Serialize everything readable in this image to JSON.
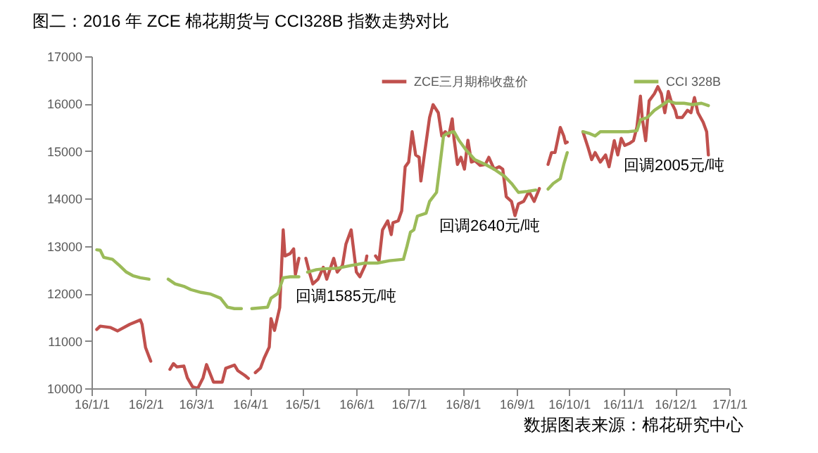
{
  "chart_data": {
    "type": "line",
    "title": "图二：2016 年 ZCE 棉花期货与 CCI328B 指数走势对比",
    "series": [
      {
        "name": "ZCE三月期棉收盘价",
        "color": "#c0504d",
        "x": [
          "2016-01-04",
          "2016-01-06",
          "2016-01-12",
          "2016-01-16",
          "2016-01-23",
          "2016-01-29",
          "2016-01-30",
          "2016-02-01",
          "2016-02-04",
          "2016-02-10",
          "2016-02-15",
          "2016-02-17",
          "2016-02-19",
          "2016-02-23",
          "2016-02-25",
          "2016-02-28",
          "2016-03-02",
          "2016-03-05",
          "2016-03-07",
          "2016-03-11",
          "2016-03-16",
          "2016-03-18",
          "2016-03-23",
          "2016-03-25",
          "2016-03-29",
          "2016-03-31",
          "2016-04-02",
          "2016-04-04",
          "2016-04-07",
          "2016-04-09",
          "2016-04-12",
          "2016-04-13",
          "2016-04-15",
          "2016-04-18",
          "2016-04-20",
          "2016-04-21",
          "2016-04-24",
          "2016-04-26",
          "2016-04-27",
          "2016-04-29",
          "2016-05-01",
          "2016-05-03",
          "2016-05-05",
          "2016-05-07",
          "2016-05-10",
          "2016-05-13",
          "2016-05-15",
          "2016-05-19",
          "2016-05-21",
          "2016-05-24",
          "2016-05-26",
          "2016-05-29",
          "2016-05-30",
          "2016-06-01",
          "2016-06-03",
          "2016-06-06",
          "2016-06-07",
          "2016-06-10",
          "2016-06-12",
          "2016-06-14",
          "2016-06-16",
          "2016-06-19",
          "2016-06-21",
          "2016-06-22",
          "2016-06-25",
          "2016-06-27",
          "2016-06-29",
          "2016-07-01",
          "2016-07-03",
          "2016-07-05",
          "2016-07-07",
          "2016-07-08",
          "2016-07-10",
          "2016-07-13",
          "2016-07-15",
          "2016-07-18",
          "2016-07-20",
          "2016-07-22",
          "2016-07-24",
          "2016-07-26",
          "2016-07-27",
          "2016-07-29",
          "2016-07-31",
          "2016-08-02",
          "2016-08-04",
          "2016-08-06",
          "2016-08-08",
          "2016-08-11",
          "2016-08-14",
          "2016-08-16",
          "2016-08-19",
          "2016-08-22",
          "2016-08-24",
          "2016-08-26",
          "2016-08-29",
          "2016-08-31",
          "2016-09-02",
          "2016-09-05",
          "2016-09-08",
          "2016-09-11",
          "2016-09-14",
          "2016-09-16",
          "2016-09-19",
          "2016-09-21",
          "2016-09-23",
          "2016-09-26",
          "2016-09-28",
          "2016-09-29",
          "2016-09-30",
          "2016-10-05",
          "2016-10-09",
          "2016-10-12",
          "2016-10-14",
          "2016-10-16",
          "2016-10-19",
          "2016-10-22",
          "2016-10-24",
          "2016-10-27",
          "2016-10-29",
          "2016-10-31",
          "2016-11-02",
          "2016-11-05",
          "2016-11-07",
          "2016-11-09",
          "2016-11-11",
          "2016-11-12",
          "2016-11-14",
          "2016-11-16",
          "2016-11-19",
          "2016-11-21",
          "2016-11-23",
          "2016-11-25",
          "2016-11-27",
          "2016-11-29",
          "2016-12-01",
          "2016-12-02",
          "2016-12-05",
          "2016-12-08",
          "2016-12-10",
          "2016-12-12",
          "2016-12-14",
          "2016-12-17",
          "2016-12-19",
          "2016-12-20"
        ],
        "values": [
          11240,
          11310,
          11280,
          11210,
          11350,
          11440,
          11350,
          10860,
          10570,
          null,
          10400,
          10520,
          10450,
          10470,
          10220,
          10030,
          10000,
          10220,
          10500,
          10130,
          10130,
          10420,
          10490,
          10370,
          10270,
          10210,
          null,
          10330,
          10430,
          10630,
          10870,
          11470,
          11220,
          11700,
          13340,
          12790,
          12840,
          12940,
          12400,
          12740,
          null,
          12740,
          12450,
          12200,
          12300,
          12550,
          12300,
          12740,
          12450,
          12590,
          13040,
          13340,
          13040,
          12450,
          12350,
          12590,
          12790,
          null,
          12790,
          12690,
          13340,
          13530,
          13240,
          13490,
          13530,
          13740,
          14670,
          14770,
          15410,
          14920,
          14870,
          14370,
          14920,
          15710,
          15980,
          15810,
          15320,
          15410,
          15320,
          15680,
          15270,
          14720,
          14870,
          14620,
          15230,
          14770,
          14800,
          14700,
          14720,
          14870,
          14620,
          14670,
          14620,
          14040,
          13940,
          13640,
          13890,
          13940,
          14150,
          13940,
          14210,
          null,
          14720,
          14970,
          14970,
          15500,
          15320,
          15170,
          15190,
          null,
          15410,
          15070,
          14820,
          14970,
          14770,
          14920,
          14670,
          15220,
          14920,
          15270,
          15120,
          15170,
          15220,
          15510,
          16160,
          15710,
          15220,
          16060,
          16210,
          16360,
          16210,
          15810,
          16260,
          16010,
          15860,
          15710,
          15710,
          15860,
          15810,
          16130,
          15810,
          15610,
          15410,
          14920
        ]
      },
      {
        "name": "CCI 328B",
        "color": "#9bbb59",
        "x": [
          "2016-01-04",
          "2016-01-06",
          "2016-01-08",
          "2016-01-13",
          "2016-01-17",
          "2016-01-21",
          "2016-01-25",
          "2016-01-29",
          "2016-02-03",
          "2016-02-08",
          "2016-02-14",
          "2016-02-18",
          "2016-02-23",
          "2016-02-27",
          "2016-03-04",
          "2016-03-09",
          "2016-03-15",
          "2016-03-19",
          "2016-03-23",
          "2016-03-27",
          "2016-03-30",
          "2016-04-02",
          "2016-04-11",
          "2016-04-13",
          "2016-04-17",
          "2016-04-20",
          "2016-04-24",
          "2016-04-29",
          "2016-05-01",
          "2016-05-04",
          "2016-05-09",
          "2016-05-13",
          "2016-05-21",
          "2016-05-29",
          "2016-06-06",
          "2016-06-13",
          "2016-06-20",
          "2016-06-28",
          "2016-06-30",
          "2016-07-02",
          "2016-07-04",
          "2016-07-06",
          "2016-07-11",
          "2016-07-13",
          "2016-07-17",
          "2016-07-19",
          "2016-07-21",
          "2016-07-23",
          "2016-07-27",
          "2016-07-30",
          "2016-08-03",
          "2016-08-08",
          "2016-08-14",
          "2016-08-19",
          "2016-08-25",
          "2016-08-29",
          "2016-09-02",
          "2016-09-07",
          "2016-09-12",
          "2016-09-16",
          "2016-09-19",
          "2016-09-22",
          "2016-09-26",
          "2016-09-28",
          "2016-09-30",
          "2016-10-05",
          "2016-10-09",
          "2016-10-13",
          "2016-10-16",
          "2016-10-19",
          "2016-10-27",
          "2016-11-04",
          "2016-11-09",
          "2016-11-11",
          "2016-11-15",
          "2016-11-19",
          "2016-11-23",
          "2016-11-27",
          "2016-12-01",
          "2016-12-06",
          "2016-12-11",
          "2016-12-16",
          "2016-12-20"
        ],
        "values": [
          12920,
          12910,
          12760,
          12720,
          12590,
          12450,
          12370,
          12330,
          12300,
          null,
          12300,
          12200,
          12150,
          12080,
          12020,
          11990,
          11900,
          11710,
          11680,
          11680,
          null,
          11680,
          11710,
          11900,
          12000,
          12330,
          12350,
          12350,
          null,
          12450,
          12500,
          12520,
          12530,
          12590,
          12640,
          12640,
          12690,
          12720,
          12990,
          13290,
          13340,
          13630,
          13690,
          13940,
          14130,
          14720,
          15320,
          15370,
          15410,
          15220,
          15020,
          14820,
          14720,
          14620,
          14470,
          14320,
          14130,
          14150,
          14180,
          null,
          14200,
          14320,
          14420,
          14720,
          14970,
          null,
          15410,
          15370,
          15320,
          15410,
          15410,
          15410,
          15430,
          15660,
          15710,
          15860,
          15960,
          16060,
          16010,
          16010,
          15980,
          16010,
          15960
        ]
      }
    ],
    "xlim": [
      "2016-01-01",
      "2017-01-01"
    ],
    "xticks": [
      {
        "value": "2016-01-01",
        "label": "16/1/1"
      },
      {
        "value": "2016-02-01",
        "label": "16/2/1"
      },
      {
        "value": "2016-03-01",
        "label": "16/3/1"
      },
      {
        "value": "2016-04-01",
        "label": "16/4/1"
      },
      {
        "value": "2016-05-01",
        "label": "16/5/1"
      },
      {
        "value": "2016-06-01",
        "label": "16/6/1"
      },
      {
        "value": "2016-07-01",
        "label": "16/7/1"
      },
      {
        "value": "2016-08-01",
        "label": "16/8/1"
      },
      {
        "value": "2016-09-01",
        "label": "16/9/1"
      },
      {
        "value": "2016-10-01",
        "label": "16/10/1"
      },
      {
        "value": "2016-11-01",
        "label": "16/11/1"
      },
      {
        "value": "2016-12-01",
        "label": "16/12/1"
      },
      {
        "value": "2017-01-01",
        "label": "17/1/1"
      }
    ],
    "ylim": [
      10000,
      17000
    ],
    "yticks": [
      10000,
      11000,
      12000,
      13000,
      14000,
      15000,
      16000,
      17000
    ],
    "legend": "top right",
    "annotations": [
      "回调1585元/吨",
      "回调2640元/吨",
      "回调2005元/吨",
      "数据图表来源：棉花研究中心"
    ]
  }
}
